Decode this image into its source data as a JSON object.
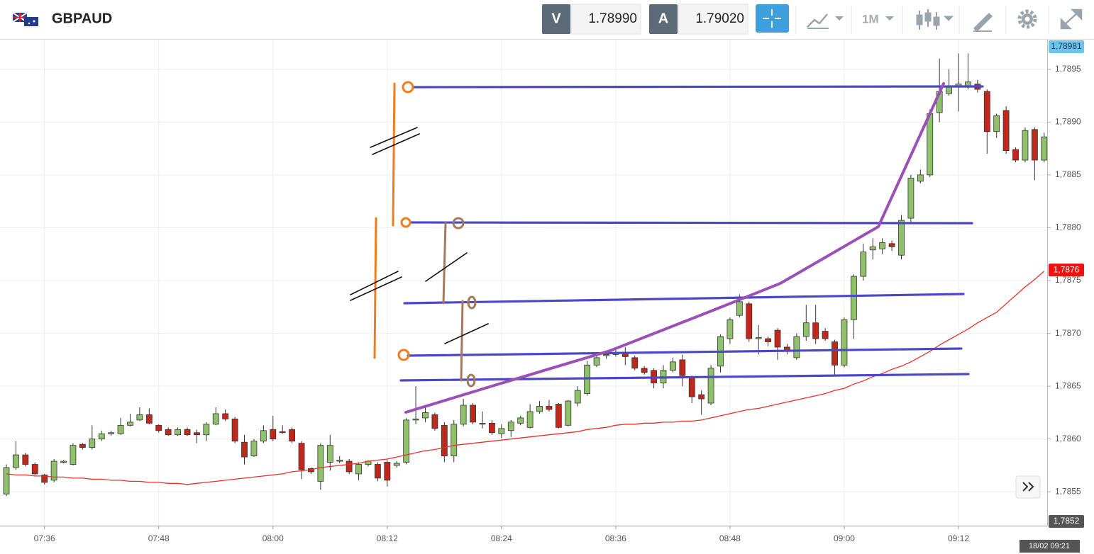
{
  "header": {
    "symbol": "GBPAUD",
    "bid_label": "V",
    "bid": "1.78990",
    "ask_label": "A",
    "ask": "1.79020",
    "timeframe": "1M"
  },
  "chart_data": {
    "type": "candlestick",
    "categories": [
      null,
      null,
      null,
      null,
      "07:36",
      null,
      null,
      null,
      null,
      null,
      null,
      null,
      null,
      null,
      null,
      null,
      "07:48",
      null,
      null,
      null,
      null,
      null,
      null,
      null,
      null,
      null,
      null,
      null,
      "08:00",
      null,
      null,
      null,
      null,
      null,
      null,
      null,
      null,
      null,
      null,
      null,
      "08:12",
      null,
      null,
      null,
      null,
      null,
      null,
      null,
      null,
      null,
      null,
      null,
      "08:24",
      null,
      null,
      null,
      null,
      null,
      null,
      null,
      null,
      null,
      null,
      null,
      "08:36",
      null,
      null,
      null,
      null,
      null,
      null,
      null,
      null,
      null,
      null,
      null,
      "08:48",
      null,
      null,
      null,
      null,
      null,
      null,
      null,
      null,
      null,
      null,
      null,
      "09:00",
      null,
      null,
      null,
      null,
      null,
      null,
      null,
      null,
      null,
      null,
      null,
      "09:12",
      null,
      null,
      null,
      null,
      null,
      null,
      null,
      null,
      null
    ],
    "open": [
      1.78548,
      1.78573,
      1.78585,
      1.78576,
      1.78566,
      1.78561,
      1.78578,
      1.78576,
      1.78595,
      1.78592,
      1.786,
      1.78605,
      1.78605,
      1.78613,
      1.78618,
      1.78623,
      1.78613,
      1.78609,
      1.78604,
      1.78609,
      1.78606,
      1.78604,
      1.78614,
      1.78624,
      1.78619,
      1.78597,
      1.78584,
      1.78598,
      1.78609,
      1.78607,
      1.78609,
      1.78596,
      1.78572,
      1.7856,
      1.78578,
      1.78579,
      1.78579,
      1.78567,
      1.78576,
      1.78576,
      1.78578,
      1.78575,
      1.78578,
      1.78618,
      1.7862,
      1.78623,
      1.78613,
      1.78584,
      1.78614,
      1.78632,
      1.78614,
      1.78615,
      1.78605,
      1.78608,
      1.78615,
      1.78611,
      1.78626,
      1.78631,
      1.78633,
      1.78613,
      1.78634,
      1.78643,
      1.7867,
      1.78679,
      1.7868,
      1.78682,
      1.78677,
      1.78667,
      1.78665,
      1.78653,
      1.78665,
      1.78675,
      1.78658,
      1.78642,
      1.78634,
      1.78669,
      1.78695,
      1.78717,
      1.78728,
      1.78695,
      1.78695,
      1.78703,
      1.78687,
      1.78677,
      1.78697,
      1.7871,
      1.78702,
      1.78692,
      1.7867,
      1.78713,
      1.78754,
      1.78779,
      1.7878,
      1.78785,
      1.78774,
      1.78809,
      1.78844,
      1.7885,
      1.78909,
      1.78927,
      1.78933,
      1.78933,
      1.78936,
      1.78929,
      1.78891,
      1.78911,
      1.78874,
      1.78864,
      1.78893,
      1.78864
    ],
    "high": [
      1.78576,
      1.78598,
      1.78587,
      1.78578,
      1.78567,
      1.78581,
      1.7858,
      1.78596,
      1.78596,
      1.78613,
      1.78608,
      1.78608,
      1.7862,
      1.78624,
      1.7863,
      1.78629,
      1.78614,
      1.78611,
      1.78611,
      1.78611,
      1.78609,
      1.78616,
      1.7863,
      1.78628,
      1.78621,
      1.78604,
      1.786,
      1.78613,
      1.78622,
      1.78613,
      1.78611,
      1.78598,
      1.78573,
      1.78596,
      1.78604,
      1.78584,
      1.78581,
      1.78578,
      1.7858,
      1.78578,
      1.7858,
      1.78579,
      1.7862,
      1.7865,
      1.78631,
      1.78625,
      1.78616,
      1.78618,
      1.78638,
      1.78634,
      1.78626,
      1.78618,
      1.78614,
      1.78618,
      1.78622,
      1.78633,
      1.78636,
      1.78637,
      1.78634,
      1.78637,
      1.7865,
      1.78674,
      1.7868,
      1.78683,
      1.78686,
      1.78687,
      1.78679,
      1.78669,
      1.78667,
      1.7867,
      1.78677,
      1.7868,
      1.7866,
      1.78646,
      1.7867,
      1.78699,
      1.78715,
      1.78737,
      1.7873,
      1.78708,
      1.78697,
      1.78705,
      1.7869,
      1.787,
      1.78727,
      1.78727,
      1.78705,
      1.78694,
      1.78715,
      1.78756,
      1.78785,
      1.7879,
      1.7879,
      1.78788,
      1.78812,
      1.7885,
      1.78855,
      1.78912,
      1.7896,
      1.7895,
      1.78965,
      1.78965,
      1.7894,
      1.78931,
      1.78908,
      1.78915,
      1.78876,
      1.78895,
      1.78895,
      1.7889
    ],
    "low": [
      1.78546,
      1.78571,
      1.78574,
      1.78566,
      1.78557,
      1.78559,
      1.78577,
      1.78575,
      1.7859,
      1.7859,
      1.78598,
      1.78603,
      1.78604,
      1.78612,
      1.78617,
      1.78614,
      1.78606,
      1.78603,
      1.78603,
      1.78603,
      1.78596,
      1.78598,
      1.78613,
      1.78617,
      1.78596,
      1.78576,
      1.78583,
      1.78596,
      1.78598,
      1.78605,
      1.78596,
      1.78562,
      1.78567,
      1.78552,
      1.7857,
      1.78577,
      1.78567,
      1.78561,
      1.78574,
      1.7856,
      1.78555,
      1.78573,
      1.78576,
      1.78614,
      1.78616,
      1.78608,
      1.78578,
      1.78578,
      1.78612,
      1.78614,
      1.7861,
      1.78604,
      1.78601,
      1.78602,
      1.78613,
      1.7861,
      1.78624,
      1.78626,
      1.7861,
      1.78612,
      1.78631,
      1.78641,
      1.78668,
      1.78676,
      1.78678,
      1.7867,
      1.78665,
      1.78661,
      1.78648,
      1.78648,
      1.78663,
      1.7865,
      1.78634,
      1.78623,
      1.78632,
      1.78663,
      1.7869,
      1.78715,
      1.78692,
      1.7868,
      1.78688,
      1.78675,
      1.7868,
      1.78675,
      1.78693,
      1.7869,
      1.78693,
      1.7866,
      1.78668,
      1.78695,
      1.7875,
      1.7877,
      1.78775,
      1.78778,
      1.7877,
      1.78805,
      1.78842,
      1.78848,
      1.789,
      1.78925,
      1.7891,
      1.78931,
      1.78928,
      1.7887,
      1.78885,
      1.7887,
      1.78862,
      1.78862,
      1.78845,
      1.78862
    ],
    "close": [
      1.78573,
      1.78585,
      1.78576,
      1.78567,
      1.78559,
      1.78579,
      1.78579,
      1.78594,
      1.78592,
      1.786,
      1.78605,
      1.78606,
      1.78613,
      1.78616,
      1.78623,
      1.78615,
      1.78608,
      1.78604,
      1.78609,
      1.78604,
      1.78604,
      1.78614,
      1.78624,
      1.78619,
      1.78598,
      1.78583,
      1.78598,
      1.78608,
      1.786,
      1.78606,
      1.78598,
      1.78571,
      1.78569,
      1.78594,
      1.78594,
      1.7858,
      1.78569,
      1.78576,
      1.78579,
      1.78563,
      1.78561,
      1.78577,
      1.78618,
      1.78619,
      1.78625,
      1.7861,
      1.78584,
      1.78614,
      1.78632,
      1.78616,
      1.78615,
      1.78606,
      1.7861,
      1.78616,
      1.7862,
      1.78626,
      1.78631,
      1.78628,
      1.78611,
      1.78636,
      1.78646,
      1.7867,
      1.78677,
      1.7868,
      1.78682,
      1.78678,
      1.78667,
      1.78663,
      1.78653,
      1.78665,
      1.78673,
      1.7866,
      1.7864,
      1.78638,
      1.78667,
      1.78697,
      1.78713,
      1.7873,
      1.78695,
      1.78696,
      1.78692,
      1.78687,
      1.78683,
      1.78697,
      1.7871,
      1.78695,
      1.78695,
      1.7867,
      1.78713,
      1.78754,
      1.78777,
      1.78782,
      1.78786,
      1.78782,
      1.78807,
      1.78847,
      1.7885,
      1.78908,
      1.78929,
      1.78933,
      1.78936,
      1.78938,
      1.78931,
      1.78891,
      1.78906,
      1.78873,
      1.78864,
      1.78892,
      1.78864,
      1.78886
    ],
    "up_color": "#8fc06a",
    "down_color": "#c0281c",
    "moving_average": {
      "color": "#e8302a",
      "values": [
        1.78567,
        1.78566,
        1.78566,
        1.78565,
        1.78565,
        1.78564,
        1.78564,
        1.78563,
        1.78563,
        1.78562,
        1.78562,
        1.78561,
        1.78561,
        1.7856,
        1.7856,
        1.78559,
        1.78559,
        1.78558,
        1.78558,
        1.78557,
        1.78558,
        1.78559,
        1.7856,
        1.78561,
        1.78562,
        1.78563,
        1.78564,
        1.78565,
        1.78566,
        1.78567,
        1.78569,
        1.7857,
        1.78571,
        1.78573,
        1.78574,
        1.78575,
        1.78576,
        1.78577,
        1.78579,
        1.7858,
        1.78581,
        1.78583,
        1.78585,
        1.78587,
        1.78589,
        1.7859,
        1.78592,
        1.78594,
        1.78595,
        1.78596,
        1.78597,
        1.78598,
        1.78599,
        1.786,
        1.78601,
        1.78602,
        1.78603,
        1.78604,
        1.78605,
        1.78606,
        1.78607,
        1.78609,
        1.7861,
        1.78611,
        1.78613,
        1.78614,
        1.78614,
        1.78615,
        1.78615,
        1.78616,
        1.78616,
        1.78617,
        1.78617,
        1.78618,
        1.7862,
        1.78622,
        1.78624,
        1.78626,
        1.78628,
        1.78629,
        1.78631,
        1.78633,
        1.78635,
        1.78637,
        1.78639,
        1.78641,
        1.78643,
        1.78646,
        1.78648,
        1.78652,
        1.78655,
        1.78659,
        1.78662,
        1.78666,
        1.78669,
        1.78673,
        1.78678,
        1.78683,
        1.78689,
        1.78694,
        1.78699,
        1.78704,
        1.7871,
        1.78715,
        1.7872,
        1.78728,
        1.78736,
        1.78744,
        1.78751,
        1.78759
      ]
    },
    "ylim": [
      1.78518,
      1.78978
    ],
    "yticks": [
      {
        "value": 1.7855,
        "label": "1,7855"
      },
      {
        "value": 1.786,
        "label": "1,7860"
      },
      {
        "value": 1.7865,
        "label": "1,7865"
      },
      {
        "value": 1.787,
        "label": "1,7870"
      },
      {
        "value": 1.7875,
        "label": "1,7875"
      },
      {
        "value": 1.788,
        "label": "1,7880"
      },
      {
        "value": 1.7885,
        "label": "1,7885"
      },
      {
        "value": 1.789,
        "label": "1,7890"
      },
      {
        "value": 1.7895,
        "label": "1,7895"
      }
    ],
    "price_markers": [
      {
        "value": 1.78981,
        "label": "1,78981",
        "color": "#6ec3ec",
        "text_color": "#1b3c55"
      },
      {
        "value": 1.7876,
        "label": "1,7876",
        "color": "#f01010",
        "text_color": "#ffffff"
      },
      {
        "value": 1.7852,
        "label": "1,7852",
        "color": "#555555",
        "text_color": "#ffffff"
      }
    ],
    "time_marker": "18/02 09:21",
    "grid": true
  }
}
